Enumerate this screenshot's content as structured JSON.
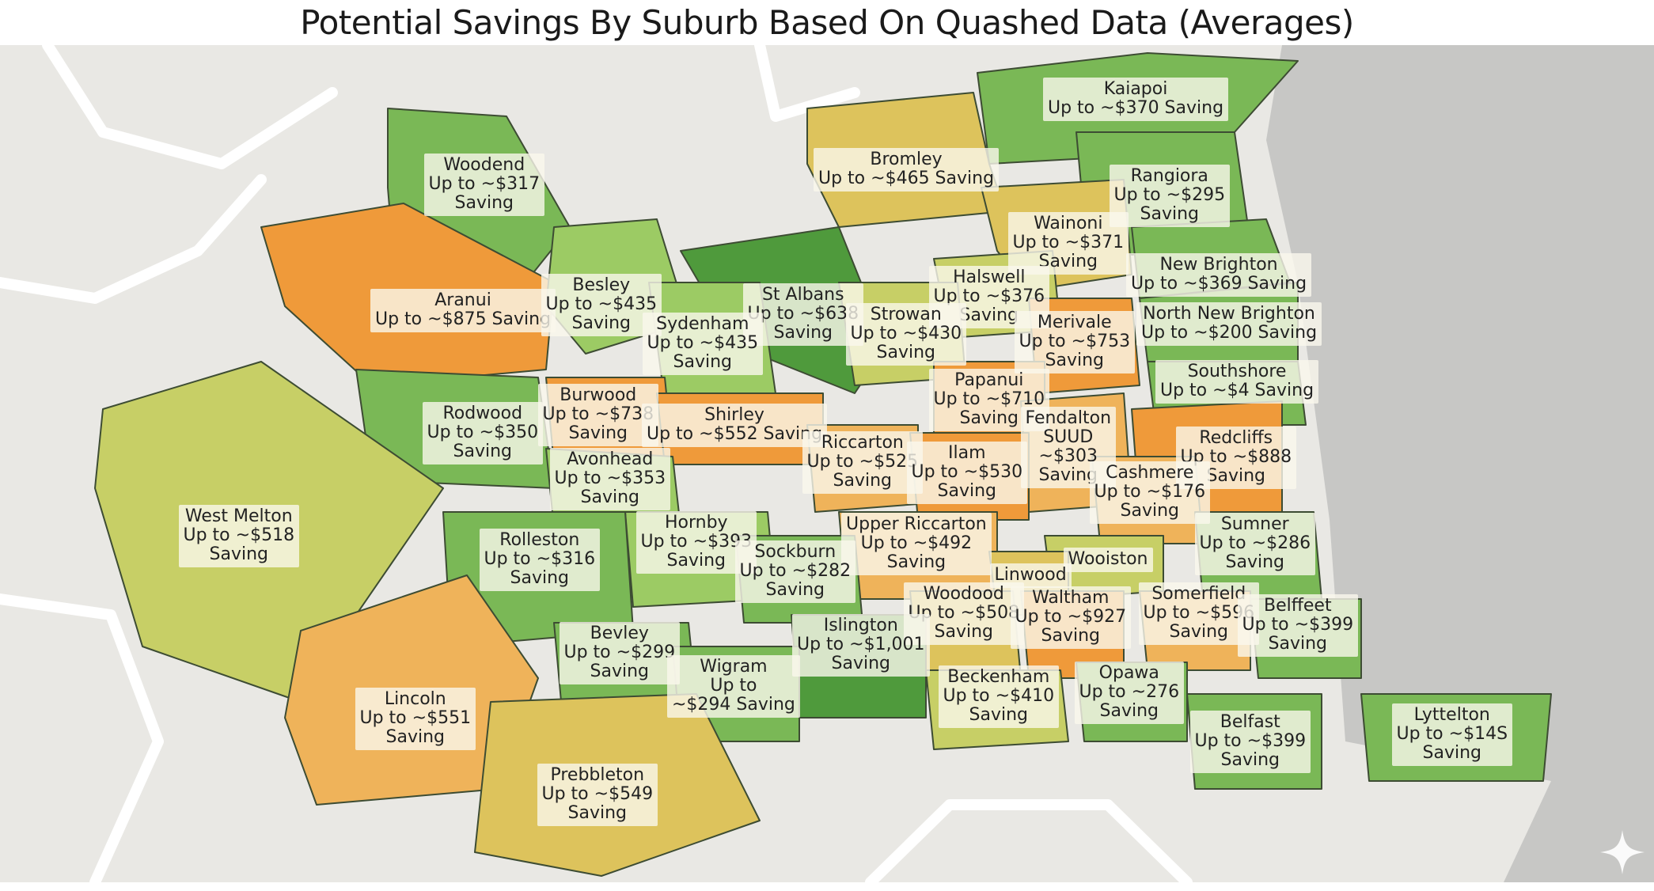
{
  "title": "Potential Savings By Suburb Based On Quashed Data (Averages)",
  "colors": {
    "background": "#e9e8e4",
    "sea": "#c7c7c5",
    "land_outline": "#ffffff",
    "dark_green": "#4f9a3c",
    "green": "#7ab856",
    "light_green": "#9ccb64",
    "yellow_green": "#c7cf66",
    "yellow": "#ddc35c",
    "light_orange": "#efb35a",
    "orange": "#ef9a3a",
    "border": "#3d4c33"
  },
  "suburbs": [
    {
      "id": "kaiapoi",
      "lines": [
        "Kaiapoi",
        "Up to ~$370 Saving"
      ],
      "fill": "green"
    },
    {
      "id": "bromley",
      "lines": [
        "Bromley",
        "Up to ~$465 Saving"
      ],
      "fill": "yellow"
    },
    {
      "id": "woodend",
      "lines": [
        "Woodend",
        "Up to ~$317",
        "Saving"
      ],
      "fill": "green"
    },
    {
      "id": "rangiora",
      "lines": [
        "Rangiora",
        "Up to ~$295",
        "Saving"
      ],
      "fill": "green"
    },
    {
      "id": "wainoni",
      "lines": [
        "Wainoni",
        "Up to ~$371",
        "Saving"
      ],
      "fill": "yellow"
    },
    {
      "id": "new-brighton",
      "lines": [
        "New Brighton",
        "Up to ~$369 Saving"
      ],
      "fill": "green"
    },
    {
      "id": "aranui",
      "lines": [
        "Aranui",
        "Up to ~$875 Saving"
      ],
      "fill": "orange"
    },
    {
      "id": "besley",
      "lines": [
        "Besley",
        "Up to ~$435",
        "Saving"
      ],
      "fill": "light_green"
    },
    {
      "id": "st-albans",
      "lines": [
        "St Albans",
        "Up to ~$638",
        "Saving"
      ],
      "fill": "dark_green"
    },
    {
      "id": "halswell",
      "lines": [
        "Halswell",
        "Up to ~$376",
        "Saving"
      ],
      "fill": "yellow_green"
    },
    {
      "id": "north-new-brighton",
      "lines": [
        "North New Brighton",
        "Up to ~$200 Saving"
      ],
      "fill": "green"
    },
    {
      "id": "sydenham",
      "lines": [
        "Sydenham",
        "Up to ~$435",
        "Saving"
      ],
      "fill": "light_green"
    },
    {
      "id": "strowan",
      "lines": [
        "Strowan",
        "Up to ~$430",
        "Saving"
      ],
      "fill": "yellow_green"
    },
    {
      "id": "merivale",
      "lines": [
        "Merivale",
        "Up to ~$753",
        "Saving"
      ],
      "fill": "orange"
    },
    {
      "id": "southshore",
      "lines": [
        "Southshore",
        "Up to ~$4      Saving"
      ],
      "fill": "green"
    },
    {
      "id": "papanui",
      "lines": [
        "Papanui",
        "Up to ~$710",
        "Saving"
      ],
      "fill": "orange"
    },
    {
      "id": "burwood",
      "lines": [
        "Burwood",
        "Up to ~$738",
        "Saving"
      ],
      "fill": "orange"
    },
    {
      "id": "shirley",
      "lines": [
        "Shirley",
        "Up to ~$552 Saving"
      ],
      "fill": "orange"
    },
    {
      "id": "rodwood",
      "lines": [
        "Rodwood",
        "Up to ~$350",
        "Saving"
      ],
      "fill": "green"
    },
    {
      "id": "fendalton",
      "lines": [
        "Fendalton",
        "SUUD",
        "~$303",
        "Saving"
      ],
      "fill": "light_orange"
    },
    {
      "id": "redcliffs",
      "lines": [
        "Redcliffs",
        "Up to ~$888",
        "Saving"
      ],
      "fill": "orange"
    },
    {
      "id": "riccarton",
      "lines": [
        "Riccarton",
        "Up to ~$525",
        "Saving"
      ],
      "fill": "light_orange"
    },
    {
      "id": "ilam",
      "lines": [
        "Ilam",
        "Up to ~$530",
        "Saving"
      ],
      "fill": "orange"
    },
    {
      "id": "cashmere",
      "lines": [
        "Cashmere",
        "Up to ~$176",
        "Saving"
      ],
      "fill": "light_orange"
    },
    {
      "id": "avonhead",
      "lines": [
        "Avonhead",
        "Up to ~$353",
        "Saving"
      ],
      "fill": "light_green"
    },
    {
      "id": "west-melton",
      "lines": [
        "West Melton",
        "Up to ~$518",
        "Saving"
      ],
      "fill": "yellow_green"
    },
    {
      "id": "hornby",
      "lines": [
        "Hornby",
        "Up to ~$393",
        "Saving"
      ],
      "fill": "light_green"
    },
    {
      "id": "rolleston",
      "lines": [
        "Rolleston",
        "Up to ~$316",
        "Saving"
      ],
      "fill": "green"
    },
    {
      "id": "upper-riccarton",
      "lines": [
        "Upper Riccarton",
        "Up to ~$492",
        "Saving"
      ],
      "fill": "light_orange"
    },
    {
      "id": "sumner",
      "lines": [
        "Sumner",
        "Up to ~$286",
        "Saving"
      ],
      "fill": "green"
    },
    {
      "id": "sockburn",
      "lines": [
        "Sockburn",
        "Up to ~$282",
        "Saving"
      ],
      "fill": "green"
    },
    {
      "id": "wooiston",
      "lines": [
        "Wooiston"
      ],
      "fill": "yellow_green"
    },
    {
      "id": "linwood",
      "lines": [
        "Linwood"
      ],
      "fill": "yellow"
    },
    {
      "id": "woodood",
      "lines": [
        "Woodood",
        "Up to ~$508",
        "Saving"
      ],
      "fill": "yellow"
    },
    {
      "id": "waltham",
      "lines": [
        "Waltham",
        "Up to ~$927",
        "Saving"
      ],
      "fill": "orange"
    },
    {
      "id": "somerfield",
      "lines": [
        "Somerfield",
        "Up to ~$596",
        "Saving"
      ],
      "fill": "light_orange"
    },
    {
      "id": "belffeet",
      "lines": [
        "Belffeet",
        "Up to ~$399",
        "Saving"
      ],
      "fill": "green"
    },
    {
      "id": "islington",
      "lines": [
        "Islington",
        "Up to ~$1,001",
        "Saving"
      ],
      "fill": "dark_green"
    },
    {
      "id": "bevley",
      "lines": [
        "Bevley",
        "Up to ~$299",
        "Saving"
      ],
      "fill": "green"
    },
    {
      "id": "wigram",
      "lines": [
        "Wigram",
        "Up to",
        "~$294 Saving"
      ],
      "fill": "green"
    },
    {
      "id": "beckenham",
      "lines": [
        "Beckenham",
        "Up to ~$410",
        "Saving"
      ],
      "fill": "yellow_green"
    },
    {
      "id": "opawa",
      "lines": [
        "Opawa",
        "Up to ~276",
        "Saving"
      ],
      "fill": "green"
    },
    {
      "id": "lincoln",
      "lines": [
        "Lincoln",
        "Up to ~$551",
        "Saving"
      ],
      "fill": "light_orange"
    },
    {
      "id": "belfast",
      "lines": [
        "Belfast",
        "Up to ~$399",
        "Saving"
      ],
      "fill": "green"
    },
    {
      "id": "lyttelton",
      "lines": [
        "Lyttelton",
        "Up to ~$14S",
        "Saving"
      ],
      "fill": "green"
    },
    {
      "id": "prebbleton",
      "lines": [
        "Prebbleton",
        "Up to ~$549",
        "Saving"
      ],
      "fill": "yellow"
    }
  ]
}
